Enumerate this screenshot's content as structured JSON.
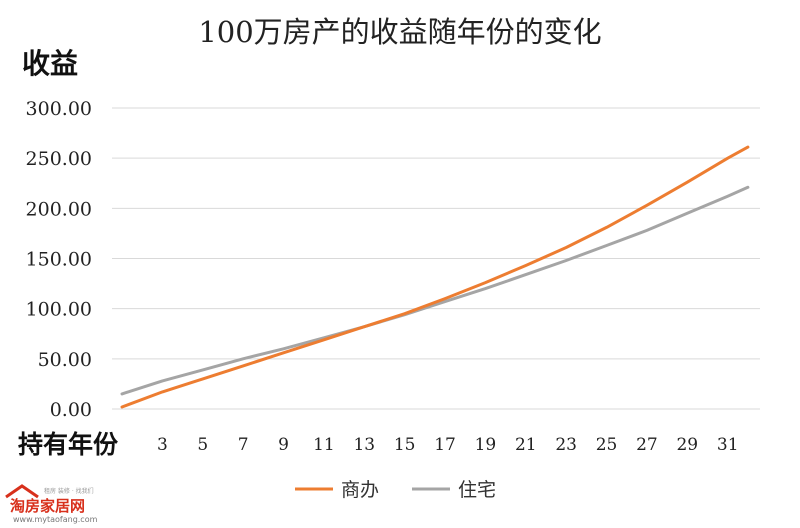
{
  "chart_data": {
    "type": "line",
    "title": "100万房产的收益随年份的变化",
    "ylabel": "收益",
    "xlabel": "持有年份",
    "ylim": [
      0,
      300
    ],
    "yticks": [
      "0.00",
      "50.00",
      "100.00",
      "150.00",
      "200.00",
      "250.00",
      "300.00"
    ],
    "x": [
      1,
      3,
      5,
      7,
      9,
      11,
      13,
      15,
      17,
      19,
      21,
      23,
      25,
      27,
      29,
      31,
      32
    ],
    "xticks": [
      "3",
      "5",
      "7",
      "9",
      "11",
      "13",
      "15",
      "17",
      "19",
      "21",
      "23",
      "25",
      "27",
      "29",
      "31"
    ],
    "grid": true,
    "legend_position": "bottom",
    "series": [
      {
        "name": "商办",
        "color": "#ed7d31",
        "values": [
          2,
          17,
          30,
          43,
          56,
          69,
          82,
          95,
          110,
          126,
          143,
          161,
          181,
          203,
          226,
          250,
          261
        ]
      },
      {
        "name": "住宅",
        "color": "#a5a5a5",
        "values": [
          15,
          28,
          39,
          50,
          60,
          71,
          82,
          94,
          107,
          120,
          134,
          148,
          163,
          178,
          195,
          212,
          221
        ]
      }
    ]
  },
  "watermark": {
    "brand": "淘房家居网",
    "url": "www.mytaofang.com",
    "tagline": "租房 装修 · 找我们"
  }
}
